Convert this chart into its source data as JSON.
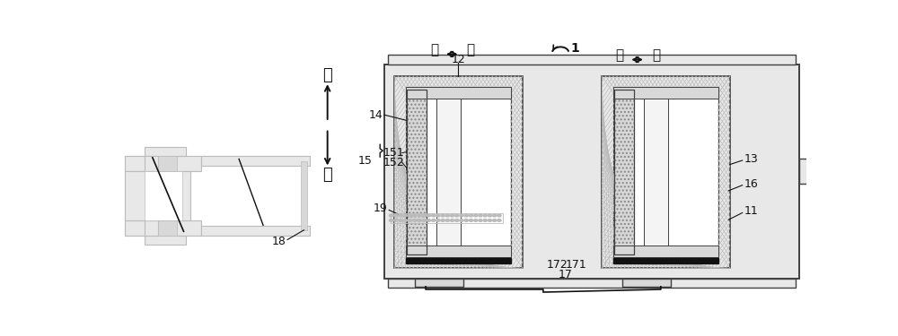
{
  "bg": "#ffffff",
  "lc": "#404040",
  "dark": "#111111",
  "gray": "#888888",
  "lgray": "#bbbbbb",
  "fg1": "#e8e8e8",
  "fg2": "#d8d8d8",
  "fg3": "#f4f4f4",
  "labels": {
    "shang": "上",
    "xia": "下",
    "wai": "外",
    "nei": "内",
    "1": "1",
    "11": "11",
    "12": "12",
    "13": "13",
    "14": "14",
    "15": "15",
    "151": "151",
    "152": "152",
    "16": "16",
    "17": "17",
    "171": "171",
    "172": "172",
    "18": "18",
    "19": "19"
  }
}
